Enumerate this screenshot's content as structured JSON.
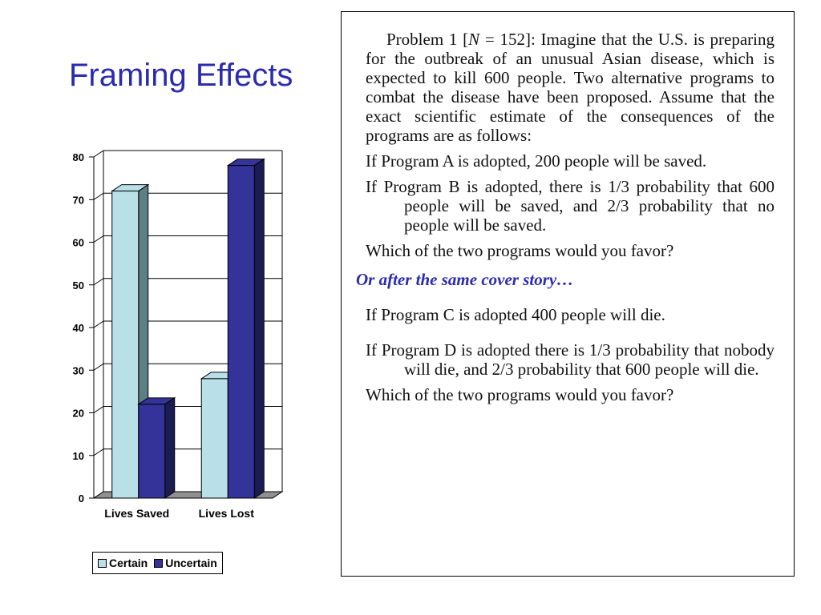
{
  "slide": {
    "title": "Framing Effects"
  },
  "chart_data": {
    "type": "bar",
    "categories": [
      "Lives Saved",
      "Lives Lost"
    ],
    "series": [
      {
        "name": "Certain",
        "values": [
          72,
          28
        ],
        "color": "#b8e0e6",
        "side_color": "#5c7f86"
      },
      {
        "name": "Uncertain",
        "values": [
          22,
          78
        ],
        "color": "#33339a",
        "side_color": "#1c1c55"
      }
    ],
    "ylim": [
      0,
      80
    ],
    "yticks": [
      "0",
      "10",
      "20",
      "30",
      "40",
      "50",
      "60",
      "70",
      "80"
    ],
    "grid": true,
    "legend_placement": "bottom",
    "title": "",
    "xlabel": "",
    "ylabel": ""
  },
  "problem": {
    "intro_label": "Problem 1 [",
    "n_var": "N",
    "n_value": " = 152]: ",
    "intro_text": "Imagine that the U.S. is preparing for the outbreak of an unusual Asian disease, which is expected to kill 600 people. Two alternative programs to combat the disease have been proposed. Assume that the exact scientific estimate of the consequences of the programs are as follows:",
    "option_a": "If Program A is adopted, 200 people will be saved.",
    "option_b": "If Program B is adopted, there is 1/3 probability that 600 people will be saved, and 2/3 probability that no people will be saved.",
    "question_1": "Which of the two programs would you favor?",
    "cover_story": "Or after the same cover story…",
    "option_c": "If Program C is adopted 400 people will die.",
    "option_d": "If Program D is adopted there is 1/3 probability that nobody will die, and 2/3 probability that 600 people will die.",
    "question_2": "Which of the two programs would you favor?"
  }
}
